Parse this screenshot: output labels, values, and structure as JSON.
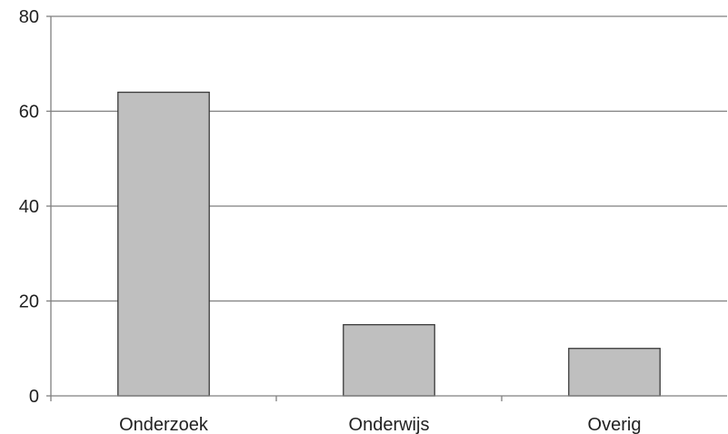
{
  "chart_data": {
    "type": "bar",
    "categories": [
      "Onderzoek",
      "Onderwijs",
      "Overig"
    ],
    "values": [
      64,
      15,
      10
    ],
    "title": "",
    "xlabel": "",
    "ylabel": "",
    "ylim": [
      0,
      80
    ],
    "yticks": [
      0,
      20,
      40,
      60,
      80
    ],
    "grid": true,
    "legend": "none",
    "bar_color": "#bfbfbf",
    "bar_stroke": "#3a3a3a",
    "grid_color": "#7f7f7f",
    "axis_color": "#7f7f7f"
  }
}
